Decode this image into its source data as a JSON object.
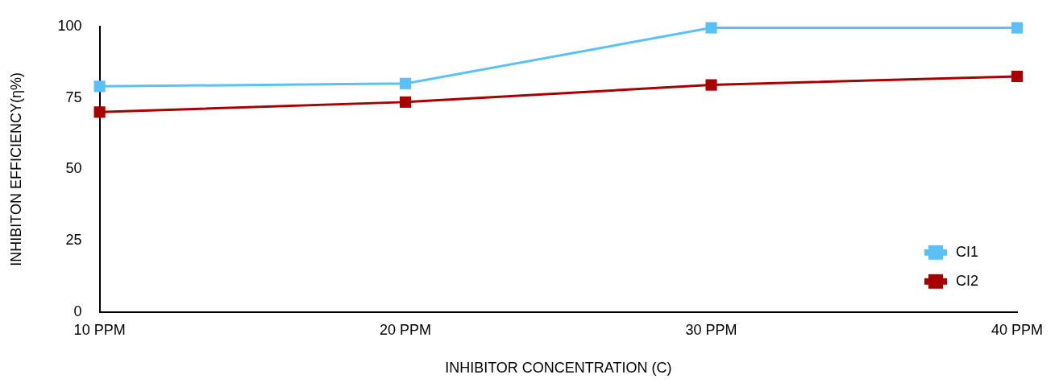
{
  "chart_data": {
    "type": "line",
    "xlabel": "INHIBITOR CONCENTRATION (C)",
    "ylabel": "INHIBITON EFFICIENCY(η%)",
    "categories": [
      "10 PPM",
      "20 PPM",
      "30 PPM",
      "40 PPM"
    ],
    "series": [
      {
        "name": "CI1",
        "color": "#5bc0f8",
        "values": [
          79,
          80,
          99.5,
          99.5
        ]
      },
      {
        "name": "CI2",
        "color": "#a80000",
        "values": [
          70,
          73.5,
          79.5,
          82.5
        ]
      }
    ],
    "ylim": [
      0,
      100
    ],
    "yticks": [
      0,
      25,
      50,
      75,
      100
    ],
    "grid": false,
    "legend": "bottom right",
    "marker": "square",
    "line_style": "solid"
  }
}
